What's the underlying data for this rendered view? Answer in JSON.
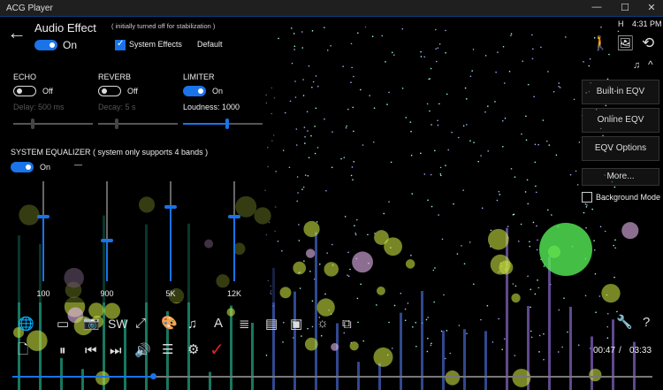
{
  "window": {
    "title": "ACG Player",
    "minimize": "—",
    "maximize": "☐",
    "close": "✕"
  },
  "status": {
    "indicator": "H",
    "time": "4:31 PM"
  },
  "audio_effect": {
    "title": "Audio Effect",
    "note": "( initially turned off for stabilization )",
    "enabled": true,
    "state_label": "On",
    "system_effects": {
      "label": "System Effects",
      "checked": true
    },
    "default_label": "Default",
    "echo": {
      "label": "ECHO",
      "enabled": false,
      "state_label": "Off",
      "param_label": "Delay: 500 ms",
      "value_fraction": 0.24
    },
    "reverb": {
      "label": "REVERB",
      "enabled": false,
      "state_label": "Off",
      "param_label": "Decay: 5 s",
      "value_fraction": 0.23
    },
    "limiter": {
      "label": "LIMITER",
      "enabled": true,
      "state_label": "On",
      "param_label": "Loudness: 1000",
      "value_fraction": 0.56
    },
    "equalizer": {
      "label": "SYSTEM EQUALIZER  ( system only supports 4 bands )",
      "enabled": true,
      "state_label": "On",
      "dash": "—",
      "bands": [
        {
          "label": "100",
          "level": 0.65
        },
        {
          "label": "900",
          "level": 0.41
        },
        {
          "label": "5K",
          "level": 0.74
        },
        {
          "label": "12K",
          "level": 0.65
        }
      ]
    }
  },
  "right_menu": {
    "buttons": [
      "Built-in EQV",
      "Online EQV",
      "EQV Options",
      "More..."
    ],
    "background_mode": {
      "label": "Background Mode",
      "checked": false
    }
  },
  "toolbar": {
    "sw_label": "SW"
  },
  "playback": {
    "current": "00:47",
    "separator": "/",
    "total": "03:33",
    "progress": 0.22
  },
  "colors": {
    "accent": "#1a73e8",
    "background": "#000000"
  }
}
